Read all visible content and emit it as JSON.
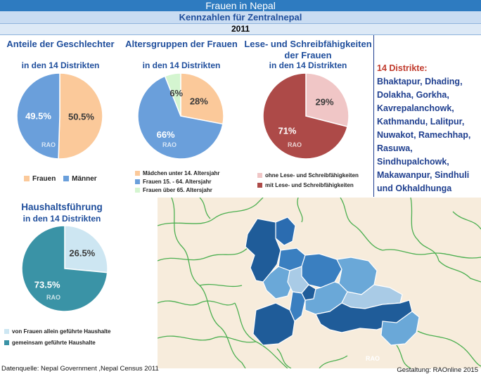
{
  "header": {
    "title": "Frauen in Nepal",
    "subtitle": "Kennzahlen für Zentralnepal",
    "year": "2011"
  },
  "watermark": "RAO",
  "chart_data": [
    {
      "type": "pie",
      "title": "Anteile der Geschlechter",
      "subtitle": "in den 14 Distrikten",
      "slices": [
        {
          "name": "Frauen",
          "value": 50.5,
          "label": "50.5%",
          "color": "#fbc99a"
        },
        {
          "name": "Männer",
          "value": 49.5,
          "label": "49.5%",
          "color": "#6a9fdb"
        }
      ],
      "legend_placement": "bottom"
    },
    {
      "type": "pie",
      "title": "Altersgruppen der Frauen",
      "subtitle": "in den 14 Distrikten",
      "slices": [
        {
          "name": "Mädchen unter 14. Altersjahr",
          "value": 28,
          "label": "28%",
          "color": "#fbc99a"
        },
        {
          "name": "Frauen 15. - 64. Altersjahr",
          "value": 66,
          "label": "66%",
          "color": "#6a9fdb"
        },
        {
          "name": "Frauen über  65. Altersjahr",
          "value": 6,
          "label": "6%",
          "color": "#d4f5d0"
        }
      ],
      "legend_placement": "bottom"
    },
    {
      "type": "pie",
      "title": "Lese- und Schreibfähigkeiten",
      "title_line2": "der Frauen",
      "subtitle": "in den 14 Distrikten",
      "slices": [
        {
          "name": "ohne Lese- und Schreibfähigkeiten",
          "value": 29,
          "label": "29%",
          "color": "#f0c6c6"
        },
        {
          "name": "mit Lese- und Schreibfähigkeiten",
          "value": 71,
          "label": "71%",
          "color": "#ad4a48"
        }
      ],
      "legend_placement": "bottom"
    },
    {
      "type": "pie",
      "title": "Haushaltsführung",
      "subtitle": "in den 14 Distrikten",
      "slices": [
        {
          "name": "von Frauen allein geführte Haushalte",
          "value": 26.5,
          "label": "26.5%",
          "color": "#cde6f2"
        },
        {
          "name": "gemeinsam geführte Haushalte",
          "value": 73.5,
          "label": "73.5%",
          "color": "#3a93a6"
        }
      ],
      "legend_placement": "bottom"
    }
  ],
  "districts": {
    "heading": "14 Distrikte:",
    "lines": [
      "Bhaktapur, Dhading,",
      "Dolakha, Gorkha,",
      "Kavrepalanchowk,",
      "Kathmandu, Lalitpur,",
      "Nuwakot, Ramechhap,",
      "Rasuwa,",
      "Sindhupalchowk,",
      "Makawanpur, Sindhuli",
      "und Okhaldhunga"
    ]
  },
  "map": {
    "watermark": "RAO",
    "colors": {
      "background": "#f7ecdc",
      "border": "#4caf50",
      "dark": "#1f5c99",
      "mid": "#3a7fc0",
      "light": "#6aa8d8",
      "pale": "#a9cbe6"
    }
  },
  "footer": {
    "source": "Datenquelle: Nepal Government ,Nepal Census 2011",
    "credit": "Gestaltung: RAOnline 2015"
  }
}
